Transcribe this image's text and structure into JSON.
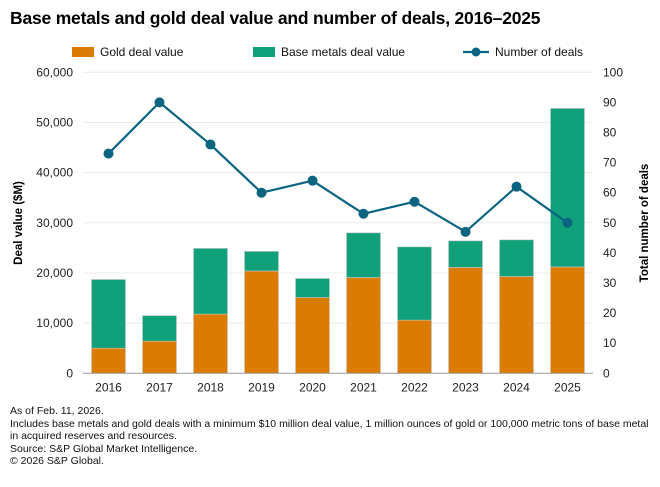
{
  "title": "Base metals and gold deal value and number of deals, 2016–2025",
  "notes": [
    "As of Feb. 11, 2026.",
    "Includes base metals and gold deals with a minimum $10 million deal value, 1 million ounces of gold or 100,000 metric tons of base metal in acquired reserves and resources.",
    "Source: S&P Global Market Intelligence.",
    "© 2026 S&P Global."
  ],
  "chart_data": {
    "type": "bar",
    "stacked": true,
    "categories": [
      "2016",
      "2017",
      "2018",
      "2019",
      "2020",
      "2021",
      "2022",
      "2023",
      "2024",
      "2025"
    ],
    "series": [
      {
        "name": "Gold deal value",
        "type": "bar",
        "axis": "left",
        "color": "#DB7B00",
        "values": [
          5000,
          6400,
          11800,
          20400,
          15100,
          19100,
          10600,
          21100,
          19300,
          21200
        ]
      },
      {
        "name": "Base metals deal value",
        "type": "bar",
        "axis": "left",
        "color": "#10A07A",
        "values": [
          13700,
          5100,
          13100,
          3900,
          3800,
          8900,
          14600,
          5300,
          7300,
          31600
        ]
      },
      {
        "name": "Number of deals",
        "type": "line",
        "axis": "right",
        "color": "#0B6580",
        "values": [
          73,
          90,
          76,
          60,
          64,
          53,
          57,
          47,
          62,
          50
        ]
      }
    ],
    "ylabel": "Deal value ($M)",
    "y2label": "Total number of deals",
    "ylim": [
      0,
      60000
    ],
    "y2lim": [
      0,
      100
    ],
    "yticks": [
      "0",
      "10,000",
      "20,000",
      "30,000",
      "40,000",
      "50,000",
      "60,000"
    ],
    "y2ticks": [
      "0",
      "10",
      "20",
      "30",
      "40",
      "50",
      "60",
      "70",
      "80",
      "90",
      "100"
    ],
    "grid": true,
    "legend": "top"
  }
}
